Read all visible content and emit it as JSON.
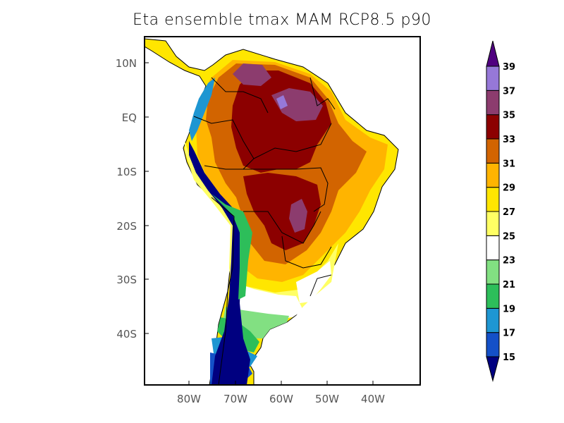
{
  "title": "Eta ensemble tmax MAM RCP8.5 p90",
  "map": {
    "lon_range": [
      -90,
      -30
    ],
    "lat_range": [
      -50,
      15
    ],
    "lat_ticks": [
      "10N",
      "EQ",
      "10S",
      "20S",
      "30S",
      "40S"
    ],
    "lon_ticks": [
      "80W",
      "70W",
      "60W",
      "50W",
      "40W"
    ]
  },
  "colorbar": {
    "levels": [
      "15",
      "17",
      "19",
      "21",
      "23",
      "25",
      "27",
      "29",
      "31",
      "33",
      "35",
      "37",
      "39"
    ],
    "colors": [
      "#000080",
      "#1450c8",
      "#1e96d2",
      "#2dbe5a",
      "#82e082",
      "#ffffff",
      "#ffff64",
      "#ffe600",
      "#ffb400",
      "#d26400",
      "#8c0000",
      "#8c3c6e",
      "#9678d8",
      "#500080"
    ]
  }
}
